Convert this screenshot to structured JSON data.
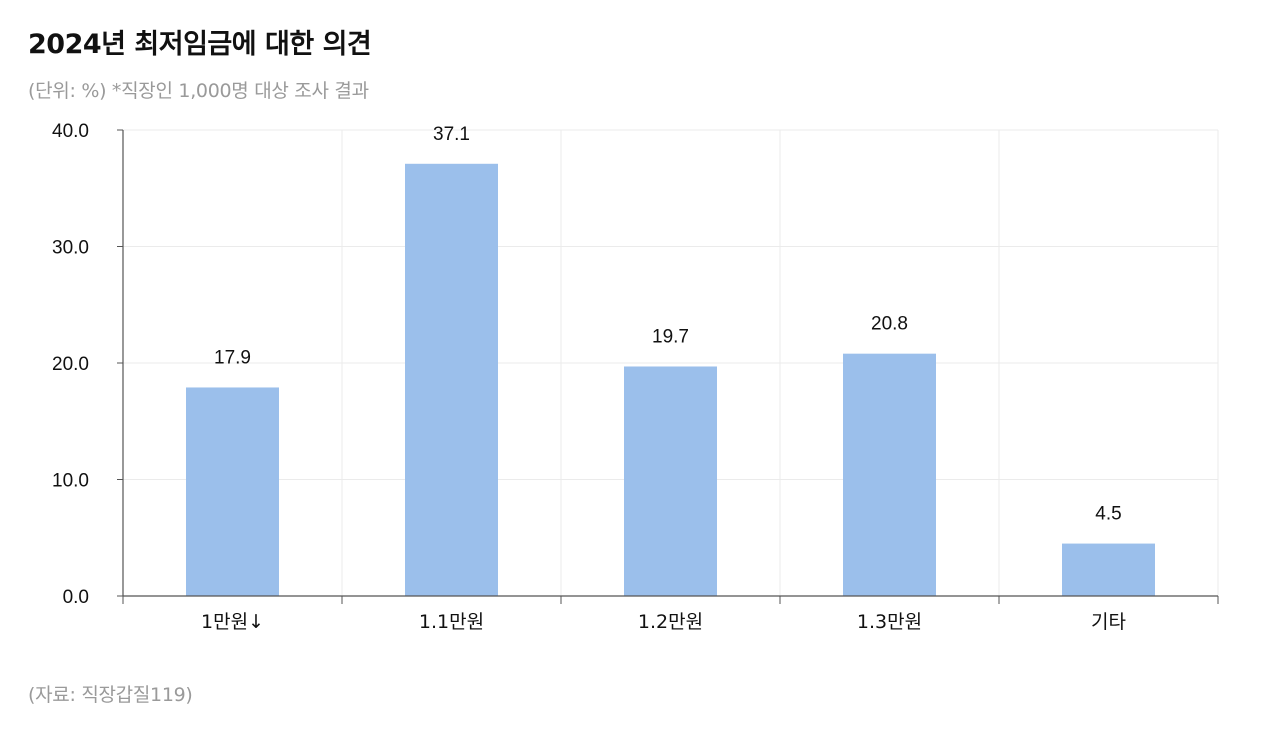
{
  "header": {
    "title": "2024년 최저임금에 대한 의견",
    "subtitle": "(단위: %) *직장인 1,000명 대상 조사 결과"
  },
  "footer": {
    "source": "(자료: 직장갑질119)"
  },
  "colors": {
    "bar": "#9bbfeb",
    "grid": "#ebebeb",
    "axis": "#555555"
  },
  "chart_data": {
    "type": "bar",
    "categories": [
      "1만원↓",
      "1.1만원",
      "1.2만원",
      "1.3만원",
      "기타"
    ],
    "values": [
      17.9,
      37.1,
      19.7,
      20.8,
      4.5
    ],
    "data_labels": [
      "17.9",
      "37.1",
      "19.7",
      "20.8",
      "4.5"
    ],
    "y_ticks": [
      0,
      10,
      20,
      30,
      40
    ],
    "y_tick_labels": [
      "0.0",
      "10.0",
      "20.0",
      "30.0",
      "40.0"
    ],
    "ylim": [
      0,
      40
    ],
    "grid": true,
    "legend": "none"
  }
}
